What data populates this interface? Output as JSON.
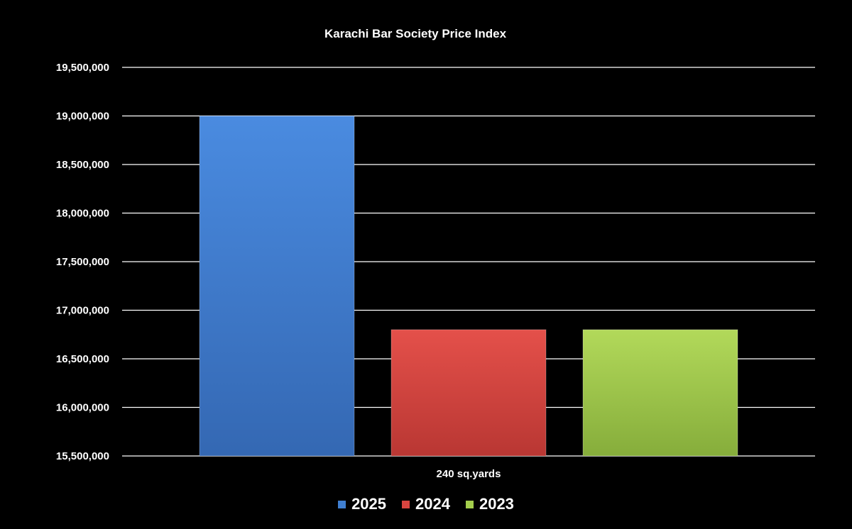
{
  "chart_data": {
    "type": "bar",
    "title": "Karachi Bar Society Price Index",
    "categories": [
      "240 sq.yards"
    ],
    "series": [
      {
        "name": "2025",
        "values": [
          19000000
        ],
        "color": "#3f7fd1"
      },
      {
        "name": "2024",
        "values": [
          16800000
        ],
        "color": "#d84540"
      },
      {
        "name": "2023",
        "values": [
          16800000
        ],
        "color": "#a4ce4c"
      }
    ],
    "ylim": [
      15500000,
      19500000
    ],
    "yticks": [
      "15,500,000",
      "16,000,000",
      "16,500,000",
      "17,000,000",
      "17,500,000",
      "18,000,000",
      "18,500,000",
      "19,000,000",
      "19,500,000"
    ],
    "xlabel": "",
    "ylabel": "",
    "grid": true,
    "legend": "bottom"
  }
}
